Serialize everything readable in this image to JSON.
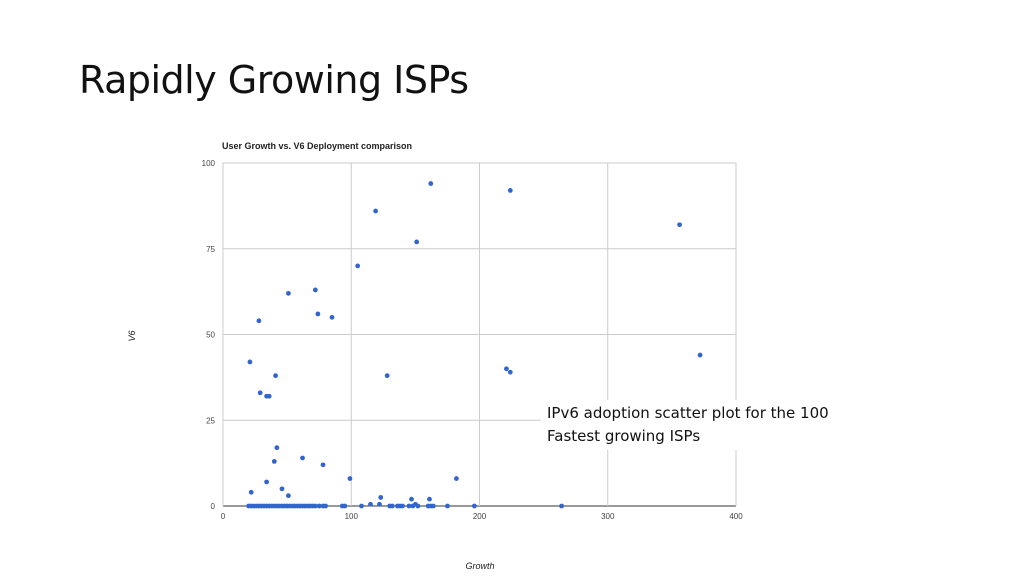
{
  "slide": {
    "title": "Rapidly Growing ISPs",
    "caption_lines": [
      "IPv6 adoption scatter plot for the 100",
      "Fastest growing ISPs"
    ]
  },
  "colors": {
    "point": "#3366cc",
    "grid": "#cccccc",
    "axis": "#333333"
  },
  "chart_data": {
    "type": "scatter",
    "title": "User Growth vs. V6 Deployment comparison",
    "xlabel": "Growth",
    "ylabel": "V6",
    "xlim": [
      0,
      400
    ],
    "ylim": [
      0,
      100
    ],
    "x_ticks": [
      0,
      100,
      200,
      300,
      400
    ],
    "y_ticks": [
      0,
      25,
      50,
      75,
      100
    ],
    "grid": true,
    "legend": "none",
    "points": [
      [
        162,
        94
      ],
      [
        224,
        92
      ],
      [
        119,
        86
      ],
      [
        356,
        82
      ],
      [
        151,
        77
      ],
      [
        105,
        70
      ],
      [
        72,
        63
      ],
      [
        51,
        62
      ],
      [
        74,
        56
      ],
      [
        85,
        55
      ],
      [
        28,
        54
      ],
      [
        372,
        44
      ],
      [
        21,
        42
      ],
      [
        221,
        40
      ],
      [
        224,
        39
      ],
      [
        41,
        38
      ],
      [
        128,
        38
      ],
      [
        29,
        33
      ],
      [
        34,
        32
      ],
      [
        36,
        32
      ],
      [
        42,
        17
      ],
      [
        40,
        13
      ],
      [
        62,
        14
      ],
      [
        78,
        12
      ],
      [
        99,
        8
      ],
      [
        182,
        8
      ],
      [
        34,
        7
      ],
      [
        46,
        5
      ],
      [
        22,
        4
      ],
      [
        51,
        3
      ],
      [
        123,
        2.5
      ],
      [
        147,
        2
      ],
      [
        161,
        2
      ],
      [
        115,
        0.5
      ],
      [
        122,
        0.5
      ],
      [
        150,
        0.5
      ],
      [
        20,
        0
      ],
      [
        22,
        0
      ],
      [
        24,
        0
      ],
      [
        26,
        0
      ],
      [
        28,
        0
      ],
      [
        30,
        0
      ],
      [
        32,
        0
      ],
      [
        34,
        0
      ],
      [
        36,
        0
      ],
      [
        38,
        0
      ],
      [
        40,
        0
      ],
      [
        42,
        0
      ],
      [
        44,
        0
      ],
      [
        46,
        0
      ],
      [
        48,
        0
      ],
      [
        50,
        0
      ],
      [
        52,
        0
      ],
      [
        54,
        0
      ],
      [
        56,
        0
      ],
      [
        58,
        0
      ],
      [
        60,
        0
      ],
      [
        62,
        0
      ],
      [
        64,
        0
      ],
      [
        66,
        0
      ],
      [
        68,
        0
      ],
      [
        70,
        0
      ],
      [
        72,
        0
      ],
      [
        75,
        0
      ],
      [
        78,
        0
      ],
      [
        80,
        0
      ],
      [
        93,
        0
      ],
      [
        95,
        0
      ],
      [
        108,
        0
      ],
      [
        130,
        0
      ],
      [
        132,
        0
      ],
      [
        136,
        0
      ],
      [
        138,
        0
      ],
      [
        140,
        0
      ],
      [
        145,
        0
      ],
      [
        148,
        0
      ],
      [
        152,
        0
      ],
      [
        160,
        0
      ],
      [
        162,
        0
      ],
      [
        164,
        0
      ],
      [
        175,
        0
      ],
      [
        196,
        0
      ],
      [
        264,
        0
      ]
    ]
  }
}
